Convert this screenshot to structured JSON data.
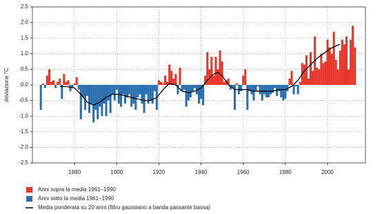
{
  "chart_data": {
    "type": "bar",
    "y_label": "deviazione °C",
    "xlim": [
      1860,
      2018
    ],
    "xticks": [
      1880,
      1900,
      1920,
      1940,
      1960,
      1980,
      2000
    ],
    "ylim": [
      -2.5,
      2.5
    ],
    "yticks": [
      -2.5,
      {
        "value": -2,
        "label": "-2.0"
      },
      -1.5,
      {
        "value": -1,
        "label": "-1.0"
      },
      -0.5,
      {
        "value": 0,
        "label": "0.0"
      },
      0.5,
      {
        "value": 1,
        "label": "1.0"
      },
      1.5,
      {
        "value": 2,
        "label": "2.0"
      },
      2.5
    ],
    "grid": true,
    "x": [
      1864,
      1865,
      1866,
      1867,
      1868,
      1869,
      1870,
      1871,
      1872,
      1873,
      1874,
      1875,
      1876,
      1877,
      1878,
      1879,
      1880,
      1881,
      1882,
      1883,
      1884,
      1885,
      1886,
      1887,
      1888,
      1889,
      1890,
      1891,
      1892,
      1893,
      1894,
      1895,
      1896,
      1897,
      1898,
      1899,
      1900,
      1901,
      1902,
      1903,
      1904,
      1905,
      1906,
      1907,
      1908,
      1909,
      1910,
      1911,
      1912,
      1913,
      1914,
      1915,
      1916,
      1917,
      1918,
      1919,
      1920,
      1921,
      1922,
      1923,
      1924,
      1925,
      1926,
      1927,
      1928,
      1929,
      1930,
      1931,
      1932,
      1933,
      1934,
      1935,
      1936,
      1937,
      1938,
      1939,
      1940,
      1941,
      1942,
      1943,
      1944,
      1945,
      1946,
      1947,
      1948,
      1949,
      1950,
      1951,
      1952,
      1953,
      1954,
      1955,
      1956,
      1957,
      1958,
      1959,
      1960,
      1961,
      1962,
      1963,
      1964,
      1965,
      1966,
      1967,
      1968,
      1969,
      1970,
      1971,
      1972,
      1973,
      1974,
      1975,
      1976,
      1977,
      1978,
      1979,
      1980,
      1981,
      1982,
      1983,
      1984,
      1985,
      1986,
      1987,
      1988,
      1989,
      1990,
      1991,
      1992,
      1993,
      1994,
      1995,
      1996,
      1997,
      1998,
      1999,
      2000,
      2001,
      2002,
      2003,
      2004,
      2005,
      2006,
      2007,
      2008,
      2009,
      2010,
      2011,
      2012,
      2013
    ],
    "series": [
      {
        "name": "Anni sopra la media 1961–1990",
        "color": "#e8372a",
        "values": [
          null,
          0.05,
          null,
          0.3,
          0.5,
          0.1,
          0.15,
          null,
          0.1,
          0.2,
          null,
          0.35,
          0.1,
          0.15,
          null,
          null,
          0.05,
          0.25,
          null,
          null,
          null,
          null,
          null,
          null,
          null,
          null,
          null,
          null,
          null,
          null,
          null,
          null,
          null,
          null,
          null,
          null,
          null,
          null,
          null,
          null,
          null,
          null,
          null,
          null,
          null,
          null,
          null,
          null,
          null,
          null,
          null,
          null,
          null,
          null,
          null,
          null,
          0.15,
          0.1,
          0.05,
          0.3,
          0.1,
          0.65,
          0.45,
          0.2,
          0.35,
          null,
          0.55,
          null,
          null,
          null,
          null,
          null,
          null,
          null,
          null,
          null,
          null,
          null,
          0.3,
          1.05,
          0.5,
          0.9,
          0.3,
          0.9,
          0.5,
          1.1,
          0.75,
          0.1,
          0.15,
          0.2,
          null,
          null,
          null,
          0.05,
          null,
          null,
          0.3,
          0.5,
          null,
          null,
          null,
          null,
          null,
          null,
          null,
          null,
          null,
          null,
          null,
          null,
          null,
          null,
          null,
          null,
          null,
          null,
          null,
          null,
          0.2,
          0.45,
          null,
          null,
          null,
          0.1,
          0.7,
          0.65,
          0.95,
          0.2,
          1.05,
          0.45,
          1.55,
          0.55,
          0.5,
          1.0,
          0.7,
          0.75,
          1.45,
          1.2,
          1.0,
          1.7,
          0.8,
          0.5,
          1.1,
          1.45,
          1.3,
          1.55,
          0.5,
          1.45,
          1.9,
          1.2
        ]
      },
      {
        "name": "Anni sotto la media 1961–1990",
        "color": "#2a6fb0",
        "values": [
          -0.8,
          null,
          -0.1,
          null,
          null,
          null,
          null,
          -0.1,
          null,
          null,
          -0.45,
          null,
          null,
          null,
          -0.2,
          -0.1,
          null,
          null,
          -0.15,
          -1.1,
          -0.4,
          -0.8,
          -0.35,
          -0.9,
          -0.6,
          -1.2,
          -0.8,
          -1.1,
          -0.7,
          -1.0,
          -0.6,
          -1.0,
          -0.5,
          -0.9,
          -0.3,
          -0.5,
          -0.15,
          -0.6,
          -0.7,
          -0.3,
          -0.6,
          -0.4,
          -0.3,
          -0.7,
          -0.6,
          -0.8,
          -0.4,
          -0.3,
          -0.6,
          -0.9,
          -0.3,
          -0.6,
          -0.5,
          -0.6,
          -0.2,
          -0.8,
          null,
          null,
          null,
          null,
          null,
          null,
          null,
          null,
          null,
          -0.3,
          null,
          -0.2,
          -0.15,
          -0.7,
          -0.5,
          -0.4,
          -0.2,
          -0.1,
          -0.3,
          -0.6,
          -0.45,
          -0.65,
          null,
          null,
          null,
          null,
          null,
          null,
          null,
          null,
          null,
          null,
          null,
          null,
          -0.15,
          -0.1,
          -0.8,
          null,
          -0.3,
          -0.2,
          null,
          null,
          -0.8,
          -0.2,
          -0.3,
          -0.5,
          -0.2,
          -0.05,
          -0.3,
          -0.5,
          -0.3,
          -0.4,
          -0.4,
          -0.3,
          -0.25,
          -0.1,
          -0.35,
          -0.2,
          -0.4,
          -0.5,
          -0.45,
          -0.2,
          null,
          null,
          -0.3,
          -0.05,
          -0.3,
          null,
          null,
          null,
          null,
          null,
          null,
          null,
          null,
          null,
          null,
          null,
          null,
          null,
          null,
          null,
          null,
          null,
          null,
          null,
          null,
          null,
          null,
          null,
          null,
          null,
          null,
          null
        ]
      },
      {
        "name": "Media ponderata su 20 anni (filtro gaussiano a banda passante bassa)",
        "color": "#000000",
        "kind": "line",
        "x": [
          1873,
          1876,
          1880,
          1883,
          1886,
          1889,
          1892,
          1895,
          1898,
          1901,
          1904,
          1907,
          1910,
          1913,
          1916,
          1919,
          1922,
          1925,
          1928,
          1931,
          1934,
          1937,
          1940,
          1943,
          1946,
          1948,
          1950,
          1953,
          1956,
          1959,
          1962,
          1965,
          1968,
          1971,
          1974,
          1977,
          1980,
          1983,
          1986,
          1989,
          1992,
          1995,
          1998,
          2001,
          2004,
          2006
        ],
        "values": [
          -0.05,
          -0.05,
          -0.1,
          -0.3,
          -0.55,
          -0.65,
          -0.55,
          -0.4,
          -0.3,
          -0.3,
          -0.35,
          -0.4,
          -0.45,
          -0.5,
          -0.5,
          -0.4,
          -0.15,
          0.05,
          0.0,
          -0.2,
          -0.25,
          -0.2,
          -0.1,
          0.15,
          0.35,
          0.4,
          0.3,
          0.0,
          -0.15,
          -0.15,
          -0.15,
          -0.2,
          -0.2,
          -0.2,
          -0.2,
          -0.15,
          -0.15,
          -0.05,
          0.15,
          0.45,
          0.65,
          0.85,
          1.0,
          1.15,
          1.25,
          1.3
        ]
      }
    ]
  }
}
